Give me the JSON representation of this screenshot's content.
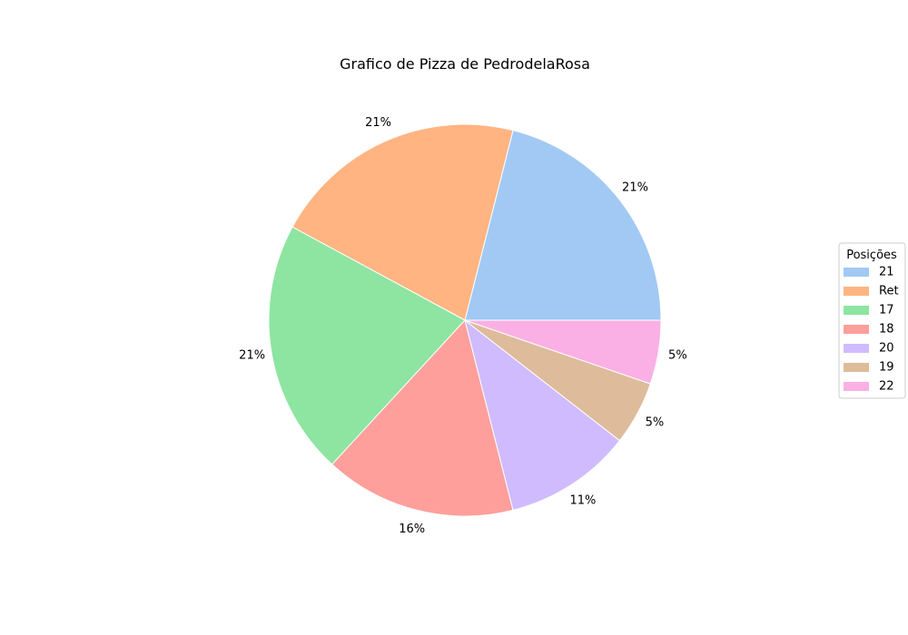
{
  "chart_data": {
    "type": "pie",
    "title": "Grafico de Pizza de PedrodelaRosa",
    "categories": [
      "21",
      "Ret",
      "17",
      "18",
      "20",
      "19",
      "22"
    ],
    "values": [
      4,
      4,
      4,
      3,
      2,
      1,
      1
    ],
    "percent_labels": [
      "21%",
      "21%",
      "21%",
      "16%",
      "11%",
      "5%",
      "5%"
    ],
    "colors": [
      "#a1c9f4",
      "#ffb482",
      "#8de5a1",
      "#ff9f9b",
      "#d0bbff",
      "#debb9b",
      "#fab0e4"
    ],
    "start_angle_deg": 0,
    "direction": "counterclockwise",
    "legend": {
      "title": "Posições",
      "placement": "center-right"
    }
  }
}
